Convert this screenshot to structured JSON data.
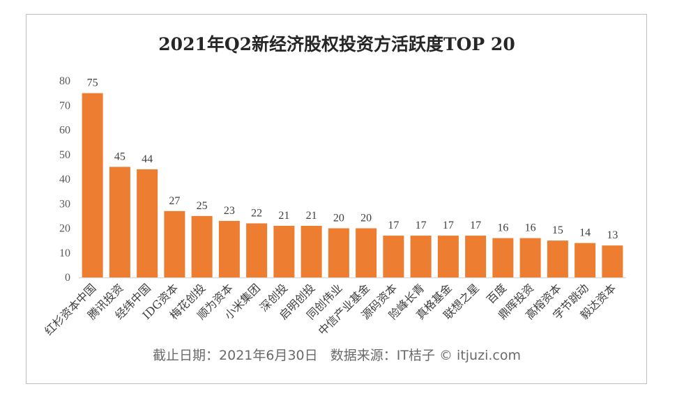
{
  "chart_data": {
    "type": "bar",
    "title": "2021年Q2新经济股权投资方活跃度TOP 20",
    "categories": [
      "红杉资本中国",
      "腾讯投资",
      "经纬中国",
      "IDG资本",
      "梅花创投",
      "顺为资本",
      "小米集团",
      "深创投",
      "启明创投",
      "同创伟业",
      "中信产业基金",
      "源码资本",
      "险峰长青",
      "真格基金",
      "联想之星",
      "百度",
      "鼎晖投资",
      "高榕资本",
      "字节跳动",
      "毅达资本"
    ],
    "values": [
      75,
      45,
      44,
      27,
      25,
      23,
      22,
      21,
      21,
      20,
      20,
      17,
      17,
      17,
      17,
      16,
      16,
      15,
      14,
      13
    ],
    "yticks": [
      0,
      10,
      20,
      30,
      40,
      50,
      60,
      70,
      80
    ],
    "ylim": [
      0,
      80
    ],
    "grid": false,
    "data_labels": true,
    "bar_color": "#ED7D31",
    "footnote": "截止日期：2021年6月30日   数据来源：IT桔子 © itjuzi.com"
  }
}
